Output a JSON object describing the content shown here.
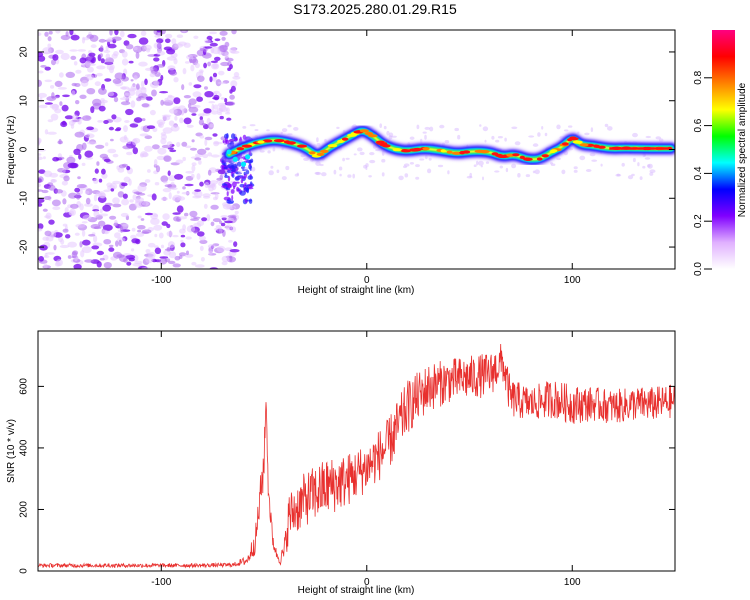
{
  "title": "S173.2025.280.01.29.R15",
  "colors": {
    "line": "#e8302e",
    "frame": "#000000",
    "background": "#ffffff"
  },
  "chart_data": [
    {
      "type": "heatmap",
      "xlabel": "Height of straight line (km)",
      "ylabel": "Frequency (Hz)",
      "xlim": [
        -160,
        150
      ],
      "ylim": [
        -24.5,
        24.5
      ],
      "xticks": [
        -100,
        0,
        100
      ],
      "yticks": [
        -20,
        -10,
        0,
        10,
        20
      ],
      "noise_region_x": [
        -160,
        -67
      ],
      "signal_trace": {
        "x": [
          -67,
          -60,
          -52,
          -45,
          -38,
          -30,
          -24,
          -18,
          -12,
          -6,
          -2,
          3,
          8,
          14,
          20,
          28,
          36,
          44,
          52,
          60,
          66,
          72,
          78,
          84,
          90,
          95,
          100,
          104,
          110,
          118,
          126,
          134,
          142,
          148
        ],
        "frequency": [
          -1.0,
          0.5,
          1.5,
          2.0,
          1.5,
          0.5,
          -1.5,
          0.5,
          1.8,
          3.2,
          4.0,
          2.8,
          1.0,
          0.0,
          -0.3,
          0.2,
          -0.2,
          -0.8,
          -0.3,
          -0.5,
          -1.5,
          -1.0,
          -2.0,
          -2.0,
          -0.5,
          0.5,
          2.5,
          1.0,
          0.8,
          0.2,
          0.3,
          0.2,
          0.2,
          0.2
        ]
      },
      "colorbar": {
        "label": "Normalized spectral amplitude",
        "range": [
          0,
          1
        ],
        "ticks": [
          "0.0",
          "0.2",
          "0.4",
          "0.6",
          "0.8"
        ],
        "colors": [
          "#ffffff",
          "#e0b0ff",
          "#8000ff",
          "#0000ff",
          "#00ffff",
          "#00ff00",
          "#ffff00",
          "#ff8000",
          "#ff0000",
          "#ff0080"
        ]
      }
    },
    {
      "type": "line",
      "xlabel": "Height of straight line (km)",
      "ylabel": "SNR (10 * v/v)",
      "xlim": [
        -160,
        150
      ],
      "ylim": [
        0,
        780
      ],
      "xticks": [
        -100,
        0,
        100
      ],
      "yticks": [
        0,
        200,
        400,
        600
      ],
      "series": [
        {
          "name": "SNR",
          "x": [
            -160,
            -120,
            -80,
            -65,
            -58,
            -54,
            -52,
            -50,
            -49,
            -48,
            -46,
            -44,
            -42,
            -40,
            -38,
            -30,
            -20,
            -10,
            0,
            10,
            20,
            30,
            40,
            50,
            60,
            66,
            70,
            80,
            90,
            100,
            110,
            120,
            130,
            140,
            150
          ],
          "y": [
            20,
            20,
            20,
            22,
            40,
            120,
            250,
            380,
            565,
            300,
            120,
            60,
            40,
            80,
            200,
            260,
            300,
            320,
            360,
            430,
            560,
            620,
            640,
            650,
            660,
            700,
            580,
            560,
            580,
            560,
            560,
            550,
            560,
            560,
            570
          ],
          "spread": [
            8,
            8,
            8,
            8,
            20,
            60,
            80,
            100,
            0,
            60,
            40,
            20,
            20,
            60,
            100,
            110,
            120,
            110,
            100,
            110,
            110,
            100,
            90,
            90,
            90,
            80,
            80,
            70,
            80,
            80,
            70,
            70,
            70,
            70,
            70
          ]
        }
      ]
    }
  ]
}
